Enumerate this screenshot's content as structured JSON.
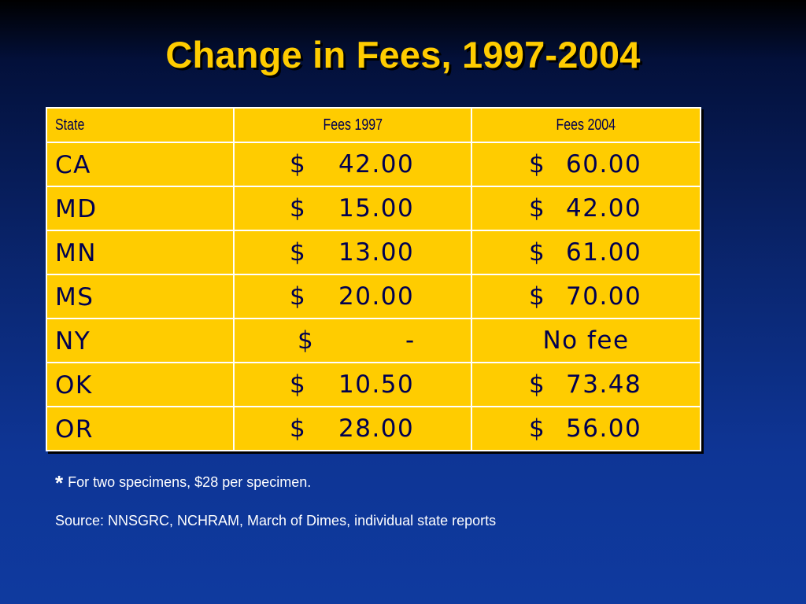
{
  "slide": {
    "title": "Change in Fees, 1997-2004"
  },
  "table": {
    "headers": {
      "state": "State",
      "fees_1997": "Fees 1997",
      "fees_2004": "Fees 2004"
    },
    "rows": [
      {
        "state": "CA",
        "fees_1997": {
          "currency": "$",
          "amount": "42.00"
        },
        "fees_2004": {
          "currency": "$",
          "amount": "60.00"
        }
      },
      {
        "state": "MD",
        "fees_1997": {
          "currency": "$",
          "amount": "15.00"
        },
        "fees_2004": {
          "currency": "$",
          "amount": "42.00"
        }
      },
      {
        "state": "MN",
        "fees_1997": {
          "currency": "$",
          "amount": "13.00"
        },
        "fees_2004": {
          "currency": "$",
          "amount": "61.00"
        }
      },
      {
        "state": "MS",
        "fees_1997": {
          "currency": "$",
          "amount": "20.00"
        },
        "fees_2004": {
          "currency": "$",
          "amount": "70.00"
        }
      },
      {
        "state": "NY",
        "fees_1997": {
          "currency": "$",
          "amount": "-"
        },
        "fees_2004": {
          "text": "No fee"
        }
      },
      {
        "state": "OK",
        "fees_1997": {
          "currency": "$",
          "amount": "10.50"
        },
        "fees_2004": {
          "currency": "$",
          "amount": "73.48"
        }
      },
      {
        "state": "OR",
        "fees_1997": {
          "currency": "$",
          "amount": "28.00"
        },
        "fees_2004": {
          "currency": "$",
          "amount": "56.00"
        }
      }
    ]
  },
  "footnote": {
    "marker": "*",
    "text": "For two specimens, $28 per specimen."
  },
  "source": {
    "text": "Source: NNSGRC, NCHRAM, March of Dimes, individual state reports"
  },
  "colors": {
    "title": "#ffcc00",
    "table_fill": "#ffcc00",
    "table_text": "#000050",
    "table_border": "#ffffff",
    "background_top": "#000000",
    "background_bottom": "#0f3a9f",
    "body_text": "#ffffff"
  }
}
